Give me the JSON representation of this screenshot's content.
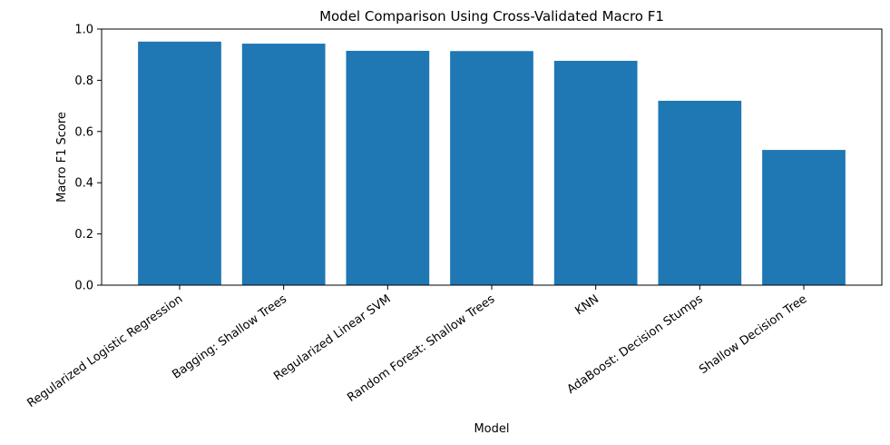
{
  "chart_data": {
    "type": "bar",
    "title": "Model Comparison Using Cross-Validated Macro F1",
    "xlabel": "Model",
    "ylabel": "Macro F1 Score",
    "ylim": [
      0,
      1.0
    ],
    "yticks": [
      "0.0",
      "0.2",
      "0.4",
      "0.6",
      "0.8",
      "1.0"
    ],
    "categories": [
      "Regularized Logistic Regression",
      "Bagging: Shallow Trees",
      "Regularized Linear SVM",
      "Random Forest: Shallow Trees",
      "KNN",
      "AdaBoost: Decision Stumps",
      "Shallow Decision Tree"
    ],
    "values": [
      0.951,
      0.943,
      0.915,
      0.914,
      0.876,
      0.72,
      0.528
    ],
    "bar_color": "#1f77b4",
    "grid": false,
    "legend": "none"
  }
}
